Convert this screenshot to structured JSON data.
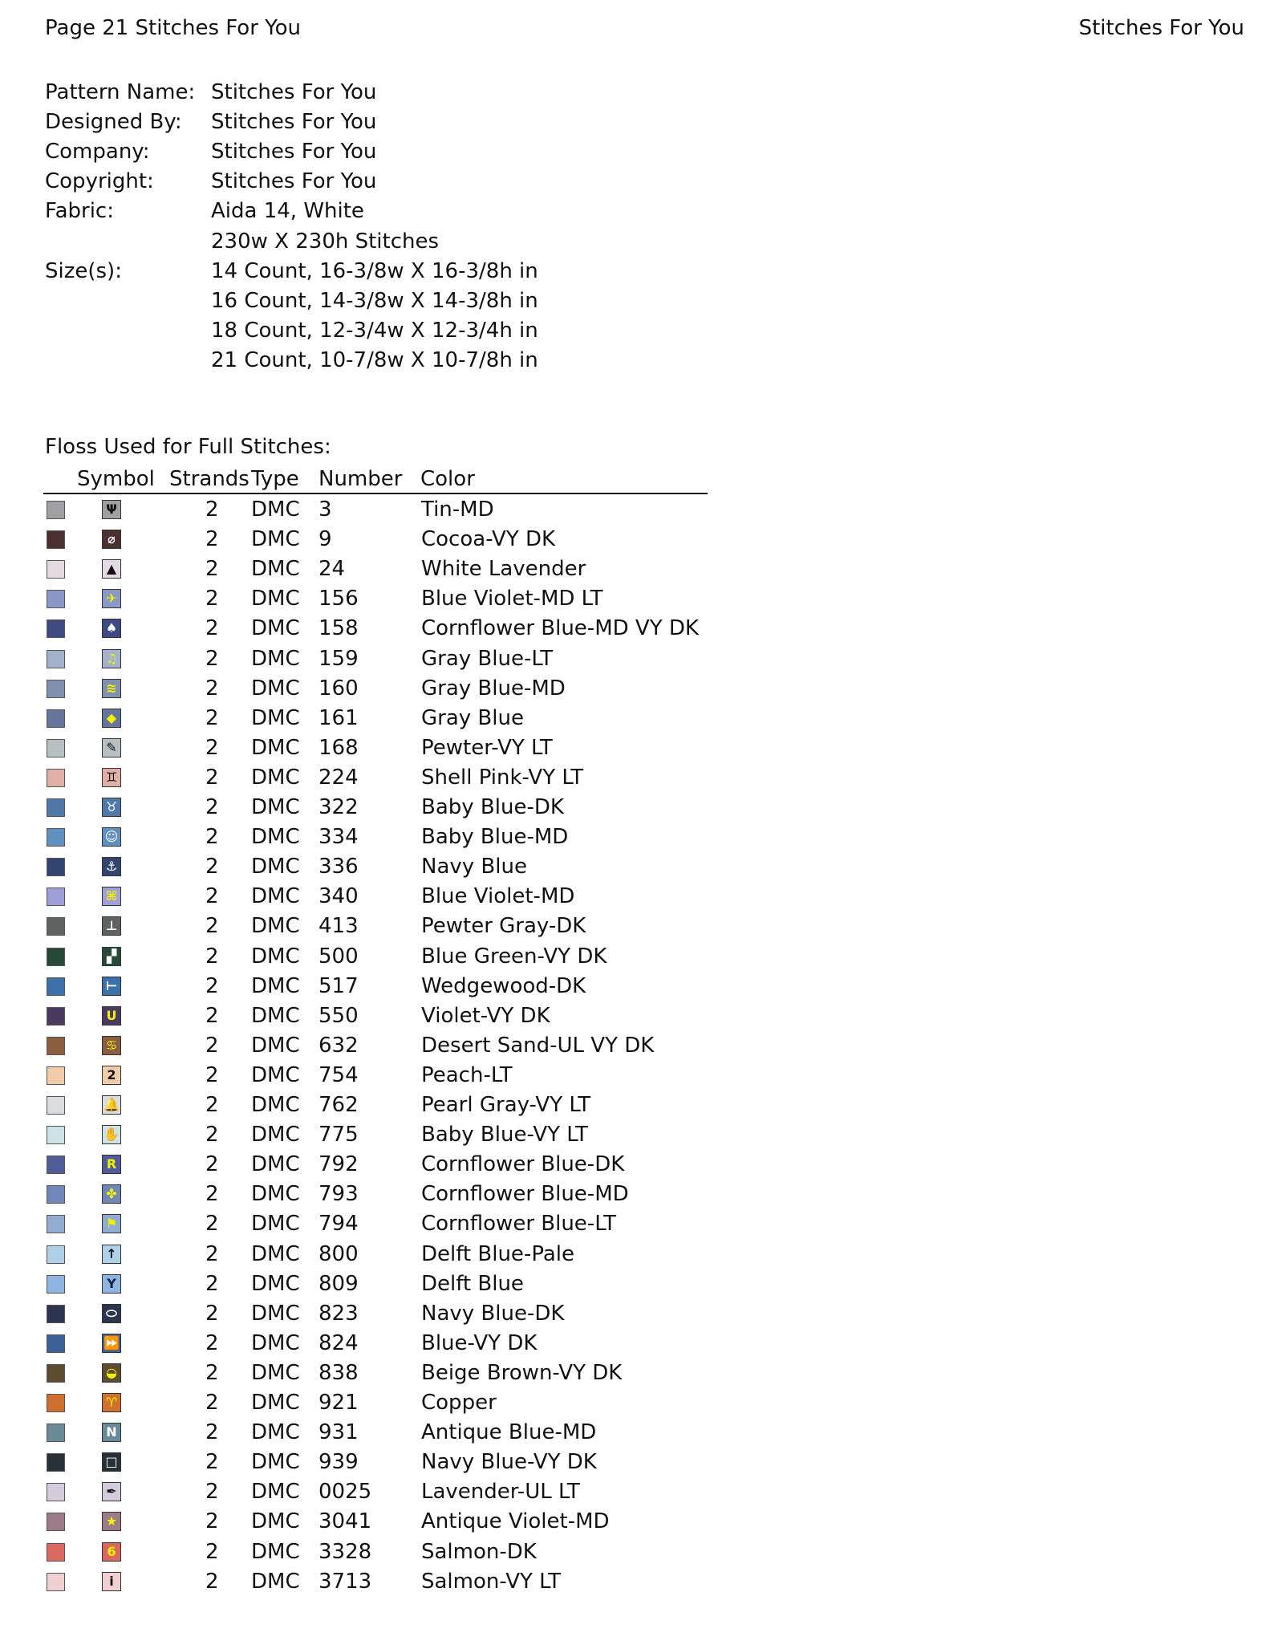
{
  "header": {
    "left": "Page 21  Stitches For You",
    "right": "Stitches For You"
  },
  "info": [
    {
      "label": "Pattern Name:",
      "value": "Stitches For You"
    },
    {
      "label": "Designed By:",
      "value": "Stitches For You"
    },
    {
      "label": "Company:",
      "value": "Stitches For You"
    },
    {
      "label": "Copyright:",
      "value": "Stitches For You"
    },
    {
      "label": "Fabric:",
      "value": "Aida 14, White"
    },
    {
      "label": "",
      "value": "230w X 230h Stitches"
    },
    {
      "label": "Size(s):",
      "value": "14 Count,   16-3/8w X 16-3/8h in"
    },
    {
      "label": "",
      "value": "16 Count,   14-3/8w X 14-3/8h in"
    },
    {
      "label": "",
      "value": "18 Count,   12-3/4w X 12-3/4h in"
    },
    {
      "label": "",
      "value": "21 Count,   10-7/8w X 10-7/8h in"
    }
  ],
  "floss": {
    "title": "Floss Used for Full Stitches:",
    "columns": [
      "Symbol",
      "Strands",
      "Type",
      "Number",
      "Color"
    ],
    "rows": [
      {
        "swatch": "#a0a0a2",
        "glyph": "Ψ",
        "glyph_color": "#111",
        "strands": "2",
        "type": "DMC",
        "number": "3",
        "color": "Tin-MD"
      },
      {
        "swatch": "#4a3030",
        "glyph": "⌀",
        "glyph_color": "#fff",
        "strands": "2",
        "type": "DMC",
        "number": "9",
        "color": "Cocoa-VY DK"
      },
      {
        "swatch": "#e6dae2",
        "glyph": "▲",
        "glyph_color": "#111",
        "strands": "2",
        "type": "DMC",
        "number": "24",
        "color": "White Lavender"
      },
      {
        "swatch": "#8a98c8",
        "glyph": "✈",
        "glyph_color": "#f2f200",
        "strands": "2",
        "type": "DMC",
        "number": "156",
        "color": "Blue Violet-MD LT"
      },
      {
        "swatch": "#3e4a80",
        "glyph": "♠",
        "glyph_color": "#fff",
        "strands": "2",
        "type": "DMC",
        "number": "158",
        "color": "Cornflower Blue-MD VY DK"
      },
      {
        "swatch": "#a4b0cc",
        "glyph": "♫",
        "glyph_color": "#f2f200",
        "strands": "2",
        "type": "DMC",
        "number": "159",
        "color": "Gray Blue-LT"
      },
      {
        "swatch": "#8290b0",
        "glyph": "≋",
        "glyph_color": "#f2f200",
        "strands": "2",
        "type": "DMC",
        "number": "160",
        "color": "Gray Blue-MD"
      },
      {
        "swatch": "#66769a",
        "glyph": "◆",
        "glyph_color": "#f2f200",
        "strands": "2",
        "type": "DMC",
        "number": "161",
        "color": "Gray Blue"
      },
      {
        "swatch": "#b6c0c0",
        "glyph": "✎",
        "glyph_color": "#111",
        "strands": "2",
        "type": "DMC",
        "number": "168",
        "color": "Pewter-VY LT"
      },
      {
        "swatch": "#e0b0a8",
        "glyph": "♊",
        "glyph_color": "#111",
        "strands": "2",
        "type": "DMC",
        "number": "224",
        "color": "Shell Pink-VY LT"
      },
      {
        "swatch": "#5078a8",
        "glyph": "♉",
        "glyph_color": "#fff",
        "strands": "2",
        "type": "DMC",
        "number": "322",
        "color": "Baby Blue-DK"
      },
      {
        "swatch": "#6090c0",
        "glyph": "☺",
        "glyph_color": "#fff",
        "strands": "2",
        "type": "DMC",
        "number": "334",
        "color": "Baby Blue-MD"
      },
      {
        "swatch": "#324470",
        "glyph": "⚓",
        "glyph_color": "#fff",
        "strands": "2",
        "type": "DMC",
        "number": "336",
        "color": "Navy Blue"
      },
      {
        "swatch": "#a0a0d8",
        "glyph": "⌘",
        "glyph_color": "#f2f200",
        "strands": "2",
        "type": "DMC",
        "number": "340",
        "color": "Blue Violet-MD"
      },
      {
        "swatch": "#5e6260",
        "glyph": "⊥",
        "glyph_color": "#fff",
        "strands": "2",
        "type": "DMC",
        "number": "413",
        "color": "Pewter Gray-DK"
      },
      {
        "swatch": "#284838",
        "glyph": "▞",
        "glyph_color": "#fff",
        "strands": "2",
        "type": "DMC",
        "number": "500",
        "color": "Blue Green-VY DK"
      },
      {
        "swatch": "#3c70a8",
        "glyph": "⊢",
        "glyph_color": "#fff",
        "strands": "2",
        "type": "DMC",
        "number": "517",
        "color": "Wedgewood-DK"
      },
      {
        "swatch": "#4a3a60",
        "glyph": "U",
        "glyph_color": "#f2f200",
        "strands": "2",
        "type": "DMC",
        "number": "550",
        "color": "Violet-VY DK"
      },
      {
        "swatch": "#8a5e40",
        "glyph": "♋",
        "glyph_color": "#f2f200",
        "strands": "2",
        "type": "DMC",
        "number": "632",
        "color": "Desert Sand-UL VY DK"
      },
      {
        "swatch": "#f0ccaa",
        "glyph": "2",
        "glyph_color": "#111",
        "strands": "2",
        "type": "DMC",
        "number": "754",
        "color": "Peach-LT"
      },
      {
        "swatch": "#dadce0",
        "glyph": "🔔",
        "glyph_color": "#111",
        "strands": "2",
        "type": "DMC",
        "number": "762",
        "color": "Pearl Gray-VY LT"
      },
      {
        "swatch": "#cce2e6",
        "glyph": "✋",
        "glyph_color": "#111",
        "strands": "2",
        "type": "DMC",
        "number": "775",
        "color": "Baby Blue-VY LT"
      },
      {
        "swatch": "#505c98",
        "glyph": "R",
        "glyph_color": "#f2f200",
        "strands": "2",
        "type": "DMC",
        "number": "792",
        "color": "Cornflower Blue-DK"
      },
      {
        "swatch": "#7088b8",
        "glyph": "✤",
        "glyph_color": "#f2f200",
        "strands": "2",
        "type": "DMC",
        "number": "793",
        "color": "Cornflower Blue-MD"
      },
      {
        "swatch": "#90acd0",
        "glyph": "⚑",
        "glyph_color": "#f2f200",
        "strands": "2",
        "type": "DMC",
        "number": "794",
        "color": "Cornflower Blue-LT"
      },
      {
        "swatch": "#b0d0e8",
        "glyph": "↑",
        "glyph_color": "#111",
        "strands": "2",
        "type": "DMC",
        "number": "800",
        "color": "Delft Blue-Pale"
      },
      {
        "swatch": "#90b4e0",
        "glyph": "Y",
        "glyph_color": "#102040",
        "strands": "2",
        "type": "DMC",
        "number": "809",
        "color": "Delft Blue"
      },
      {
        "swatch": "#2c3450",
        "glyph": "⬭",
        "glyph_color": "#fff",
        "strands": "2",
        "type": "DMC",
        "number": "823",
        "color": "Navy Blue-DK"
      },
      {
        "swatch": "#3c6098",
        "glyph": "⏩",
        "glyph_color": "#fff",
        "strands": "2",
        "type": "DMC",
        "number": "824",
        "color": "Blue-VY DK"
      },
      {
        "swatch": "#5c4c30",
        "glyph": "◒",
        "glyph_color": "#f2f200",
        "strands": "2",
        "type": "DMC",
        "number": "838",
        "color": "Beige Brown-VY DK"
      },
      {
        "swatch": "#d07030",
        "glyph": "♈",
        "glyph_color": "#f2f200",
        "strands": "2",
        "type": "DMC",
        "number": "921",
        "color": "Copper"
      },
      {
        "swatch": "#6a8a98",
        "glyph": "N",
        "glyph_color": "#fff",
        "strands": "2",
        "type": "DMC",
        "number": "931",
        "color": "Antique Blue-MD"
      },
      {
        "swatch": "#283038",
        "glyph": "□",
        "glyph_color": "#fff",
        "strands": "2",
        "type": "DMC",
        "number": "939",
        "color": "Navy Blue-VY DK"
      },
      {
        "swatch": "#d4ccdc",
        "glyph": "✒",
        "glyph_color": "#111",
        "strands": "2",
        "type": "DMC",
        "number": "0025",
        "color": "Lavender-UL LT"
      },
      {
        "swatch": "#9c7c88",
        "glyph": "★",
        "glyph_color": "#f2f200",
        "strands": "2",
        "type": "DMC",
        "number": "3041",
        "color": "Antique Violet-MD"
      },
      {
        "swatch": "#d86860",
        "glyph": "6",
        "glyph_color": "#f2f200",
        "strands": "2",
        "type": "DMC",
        "number": "3328",
        "color": "Salmon-DK"
      },
      {
        "swatch": "#f0d0d0",
        "glyph": "i",
        "glyph_color": "#111",
        "strands": "2",
        "type": "DMC",
        "number": "3713",
        "color": "Salmon-VY LT"
      }
    ]
  }
}
